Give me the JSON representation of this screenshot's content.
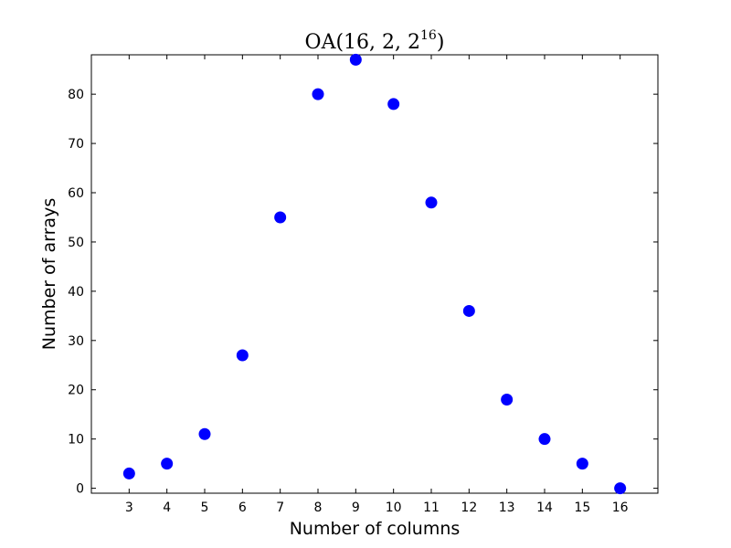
{
  "chart_data": {
    "type": "scatter",
    "title": {
      "base": "OA(16, 2, 2",
      "superscript": "16",
      "close": ")"
    },
    "xlabel": "Number of columns",
    "ylabel": "Number of arrays",
    "x": [
      3,
      4,
      5,
      6,
      7,
      8,
      9,
      10,
      11,
      12,
      13,
      14,
      15,
      16
    ],
    "y": [
      3,
      5,
      11,
      27,
      55,
      80,
      87,
      78,
      58,
      36,
      18,
      10,
      5,
      0
    ],
    "xlim": [
      2,
      17
    ],
    "ylim": [
      -1,
      88
    ],
    "xticks": [
      3,
      4,
      5,
      6,
      7,
      8,
      9,
      10,
      11,
      12,
      13,
      14,
      15,
      16
    ],
    "yticks": [
      0,
      10,
      20,
      30,
      40,
      50,
      60,
      70,
      80
    ],
    "marker_color": "#0000ff",
    "grid": false,
    "legend": "none"
  }
}
